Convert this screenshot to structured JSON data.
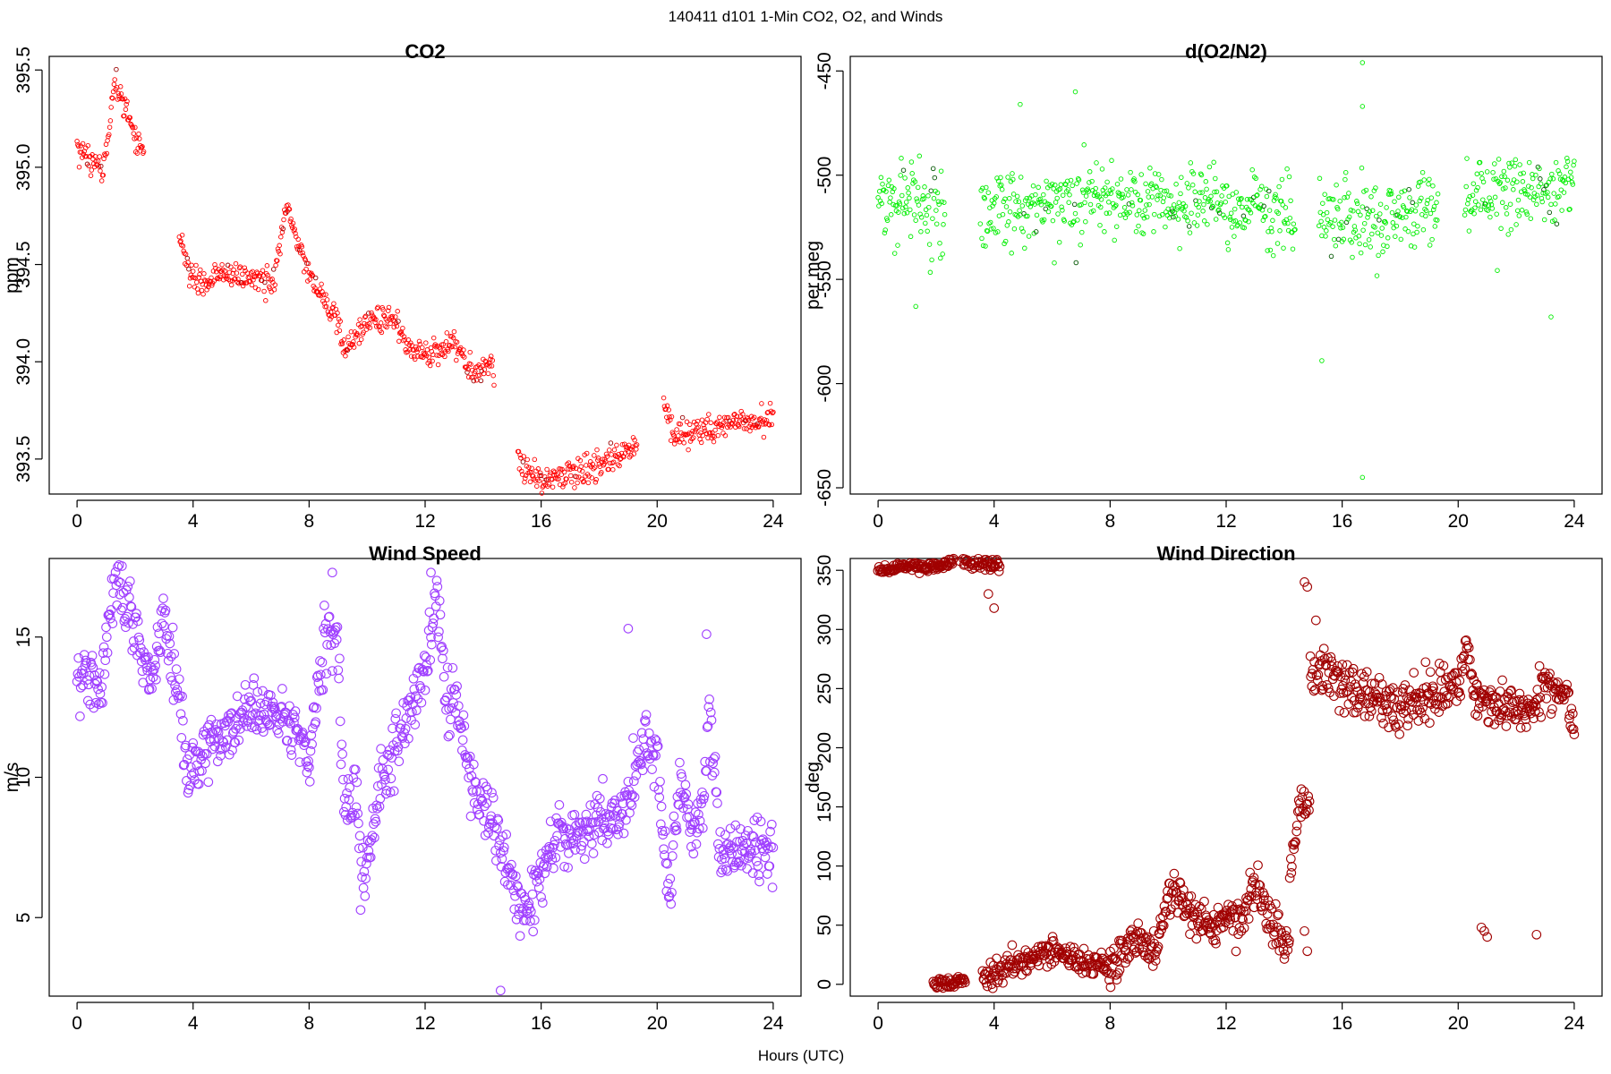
{
  "suptitle": "140411   d101   1-Min CO2, O2, and Winds",
  "xlabel": "Hours (UTC)",
  "chart_data": [
    {
      "type": "scatter",
      "title": "CO2",
      "ylabel": "ppm",
      "xlim": [
        0,
        24
      ],
      "ylim": [
        393.32,
        395.57
      ],
      "xticks": [
        0,
        4,
        8,
        12,
        16,
        20,
        24
      ],
      "yticks": [
        393.5,
        394.0,
        394.5,
        395.0,
        395.5
      ],
      "ytick_labels": [
        "393.5",
        "394.0",
        "394.5",
        "395.0",
        "395.5"
      ],
      "color": "#ff0000",
      "dark_color": "#990000",
      "marker_size": "small",
      "gaps": [
        [
          2.3,
          3.5
        ],
        [
          14.4,
          15.2
        ],
        [
          19.3,
          20.2
        ]
      ],
      "trend": [
        [
          0,
          395.1
        ],
        [
          0.5,
          395.05
        ],
        [
          0.9,
          394.95
        ],
        [
          1.3,
          395.45
        ],
        [
          1.8,
          395.25
        ],
        [
          2.7,
          394.95
        ],
        [
          3.4,
          394.7
        ],
        [
          3.9,
          394.45
        ],
        [
          4.2,
          394.4
        ],
        [
          5,
          394.45
        ],
        [
          6,
          394.43
        ],
        [
          6.8,
          394.4
        ],
        [
          7.2,
          394.8
        ],
        [
          7.6,
          394.6
        ],
        [
          8.2,
          394.4
        ],
        [
          8.8,
          394.25
        ],
        [
          9.3,
          394.05
        ],
        [
          10,
          394.22
        ],
        [
          11,
          394.22
        ],
        [
          11.5,
          394.05
        ],
        [
          12.5,
          394.05
        ],
        [
          13,
          394.1
        ],
        [
          13.7,
          393.92
        ],
        [
          14.3,
          393.98
        ],
        [
          15.3,
          393.48
        ],
        [
          16,
          393.38
        ],
        [
          17,
          393.42
        ],
        [
          18,
          393.47
        ],
        [
          18.5,
          393.5
        ],
        [
          19.3,
          393.58
        ],
        [
          20.2,
          393.85
        ],
        [
          20.5,
          393.63
        ],
        [
          21.5,
          393.65
        ],
        [
          22.5,
          393.68
        ],
        [
          23.5,
          393.7
        ],
        [
          24,
          393.7
        ]
      ],
      "noise": 0.035
    },
    {
      "type": "scatter",
      "title": "d(O2/N2)",
      "ylabel": "per meg",
      "xlim": [
        0,
        24
      ],
      "ylim": [
        -653,
        -443
      ],
      "xticks": [
        0,
        4,
        8,
        12,
        16,
        20,
        24
      ],
      "yticks": [
        -450,
        -500,
        -550,
        -600,
        -650
      ],
      "ytick_labels": [
        "-450",
        "-500",
        "-550",
        "-600",
        "-650"
      ],
      "color": "#00ee00",
      "dark_color": "#005500",
      "marker_size": "small",
      "gaps": [
        [
          2.3,
          3.5
        ],
        [
          14.4,
          15.2
        ],
        [
          19.3,
          20.2
        ]
      ],
      "trend": [
        [
          0,
          -510
        ],
        [
          1,
          -513
        ],
        [
          2,
          -520
        ],
        [
          4,
          -518
        ],
        [
          6,
          -513
        ],
        [
          8,
          -510
        ],
        [
          10,
          -510
        ],
        [
          12,
          -513
        ],
        [
          14,
          -522
        ],
        [
          15.2,
          -520
        ],
        [
          17,
          -522
        ],
        [
          19,
          -512
        ],
        [
          20.2,
          -510
        ],
        [
          22,
          -508
        ],
        [
          24,
          -505
        ]
      ],
      "noise": 9,
      "outliers": [
        [
          16.7,
          -446
        ],
        [
          16.7,
          -645
        ],
        [
          15.3,
          -589
        ],
        [
          1.3,
          -563
        ],
        [
          23.2,
          -568
        ],
        [
          6.8,
          -460
        ],
        [
          4.9,
          -466
        ],
        [
          16.7,
          -467
        ]
      ]
    },
    {
      "type": "scatter",
      "title": "Wind Speed",
      "ylabel": "m/s",
      "xlim": [
        0,
        24
      ],
      "ylim": [
        2.2,
        17.8
      ],
      "xticks": [
        0,
        4,
        8,
        12,
        16,
        20,
        24
      ],
      "yticks": [
        5,
        10,
        15
      ],
      "ytick_labels": [
        "5",
        "10",
        "15"
      ],
      "color": "#9f3fff",
      "dark_color": "#9f3fff",
      "marker_size": "large",
      "gaps": [],
      "trend": [
        [
          0,
          13.8
        ],
        [
          0.5,
          13.5
        ],
        [
          0.8,
          13.2
        ],
        [
          1.3,
          17
        ],
        [
          1.8,
          16
        ],
        [
          2.3,
          14.2
        ],
        [
          2.6,
          13.2
        ],
        [
          3,
          16
        ],
        [
          3.5,
          13
        ],
        [
          3.8,
          10
        ],
        [
          4.2,
          10.5
        ],
        [
          4.5,
          11.5
        ],
        [
          5,
          11.5
        ],
        [
          6,
          12.5
        ],
        [
          7,
          12
        ],
        [
          7.5,
          11.5
        ],
        [
          8,
          11
        ],
        [
          8.5,
          15
        ],
        [
          9,
          14.5
        ],
        [
          9.2,
          9
        ],
        [
          9.6,
          9.2
        ],
        [
          9.9,
          6.5
        ],
        [
          10.5,
          10
        ],
        [
          11,
          11
        ],
        [
          12,
          14
        ],
        [
          12.4,
          16.5
        ],
        [
          12.8,
          12
        ],
        [
          13,
          13.5
        ],
        [
          13.5,
          10
        ],
        [
          14,
          9
        ],
        [
          14.5,
          8
        ],
        [
          15,
          6
        ],
        [
          15.5,
          5
        ],
        [
          16,
          6.5
        ],
        [
          16.5,
          8
        ],
        [
          17,
          8
        ],
        [
          18,
          8.5
        ],
        [
          19,
          9
        ],
        [
          19.6,
          11.5
        ],
        [
          20,
          10.5
        ],
        [
          20.4,
          6
        ],
        [
          20.8,
          10
        ],
        [
          21.2,
          8
        ],
        [
          21.6,
          9
        ],
        [
          21.8,
          12.5
        ],
        [
          22.2,
          7
        ],
        [
          23,
          7.5
        ],
        [
          23.5,
          7.5
        ],
        [
          24,
          7.5
        ]
      ],
      "noise": 0.55,
      "outliers": [
        [
          8.8,
          17.3
        ],
        [
          12.2,
          17.3
        ],
        [
          14.6,
          2.4
        ],
        [
          19,
          15.3
        ],
        [
          21.7,
          15.1
        ]
      ]
    },
    {
      "type": "scatter",
      "title": "Wind Direction",
      "ylabel": "deg",
      "xlim": [
        0,
        24
      ],
      "ylim": [
        -10,
        360
      ],
      "xticks": [
        0,
        4,
        8,
        12,
        16,
        20,
        24
      ],
      "yticks": [
        0,
        50,
        100,
        150,
        200,
        250,
        300,
        350
      ],
      "ytick_labels": [
        "0",
        "50",
        "100",
        "150",
        "200",
        "250",
        "300",
        "350"
      ],
      "color": "#a00000",
      "dark_color": "#a00000",
      "marker_size": "large",
      "gaps": [],
      "segments": [
        {
          "range": [
            0,
            1.0
          ],
          "trend": [
            [
              0,
              349
            ],
            [
              1.0,
              354
            ]
          ],
          "noise": 2
        },
        {
          "range": [
            1.0,
            2.6
          ],
          "trend": [
            [
              1.0,
              354
            ],
            [
              2.0,
              353
            ],
            [
              2.6,
              358
            ]
          ],
          "noise": 2
        },
        {
          "range": [
            2.8,
            4.2
          ],
          "trend": [
            [
              2.8,
              358
            ],
            [
              4.2,
              355
            ]
          ],
          "noise": 3
        },
        {
          "range": [
            1.9,
            3.0
          ],
          "trend": [
            [
              1.9,
              0
            ],
            [
              3.0,
              3
            ]
          ],
          "noise": 2
        },
        {
          "range": [
            3.6,
            5.0
          ],
          "trend": [
            [
              3.6,
              5
            ],
            [
              4.3,
              12
            ],
            [
              5.0,
              18
            ]
          ],
          "noise": 7
        },
        {
          "range": [
            5.0,
            8.0
          ],
          "trend": [
            [
              5,
              20
            ],
            [
              6,
              28
            ],
            [
              6.8,
              20
            ],
            [
              7.5,
              18
            ],
            [
              8,
              15
            ]
          ],
          "noise": 5
        },
        {
          "range": [
            8.0,
            10.0
          ],
          "trend": [
            [
              8,
              15
            ],
            [
              9,
              35
            ],
            [
              9.6,
              28
            ],
            [
              10,
              75
            ]
          ],
          "noise": 8
        },
        {
          "range": [
            10.0,
            12.0
          ],
          "trend": [
            [
              10,
              75
            ],
            [
              10.5,
              70
            ],
            [
              11,
              55
            ],
            [
              11.5,
              48
            ],
            [
              12,
              58
            ]
          ],
          "noise": 8
        },
        {
          "range": [
            12.0,
            14.2
          ],
          "trend": [
            [
              12,
              58
            ],
            [
              12.6,
              60
            ],
            [
              13.0,
              85
            ],
            [
              13.5,
              55
            ],
            [
              14.2,
              30
            ]
          ],
          "noise": 10
        },
        {
          "range": [
            14.2,
            14.9
          ],
          "trend": [
            [
              14.2,
              90
            ],
            [
              14.5,
              145
            ],
            [
              14.9,
              155
            ]
          ],
          "noise": 8
        },
        {
          "range": [
            14.9,
            15.4
          ],
          "trend": [
            [
              14.9,
              275
            ],
            [
              15.2,
              270
            ],
            [
              15.4,
              262
            ]
          ],
          "noise": 12
        },
        {
          "range": [
            15.4,
            20.0
          ],
          "trend": [
            [
              15.4,
              265
            ],
            [
              16,
              255
            ],
            [
              17,
              240
            ],
            [
              18,
              238
            ],
            [
              19,
              245
            ],
            [
              20,
              248
            ]
          ],
          "noise": 11
        },
        {
          "range": [
            20.0,
            20.6
          ],
          "trend": [
            [
              20,
              250
            ],
            [
              20.3,
              290
            ],
            [
              20.6,
              230
            ]
          ],
          "noise": 10
        },
        {
          "range": [
            20.6,
            24.0
          ],
          "trend": [
            [
              20.6,
              245
            ],
            [
              21.5,
              235
            ],
            [
              22.5,
              230
            ],
            [
              23,
              255
            ],
            [
              23.8,
              240
            ],
            [
              24,
              215
            ]
          ],
          "noise": 8
        }
      ],
      "outliers": [
        [
          20.8,
          48
        ],
        [
          20.9,
          45
        ],
        [
          21.0,
          40
        ],
        [
          22.7,
          42
        ],
        [
          14.7,
          340
        ],
        [
          14.8,
          336
        ],
        [
          4.0,
          318
        ],
        [
          14.8,
          28
        ],
        [
          14.7,
          45
        ],
        [
          3.8,
          330
        ]
      ]
    }
  ]
}
